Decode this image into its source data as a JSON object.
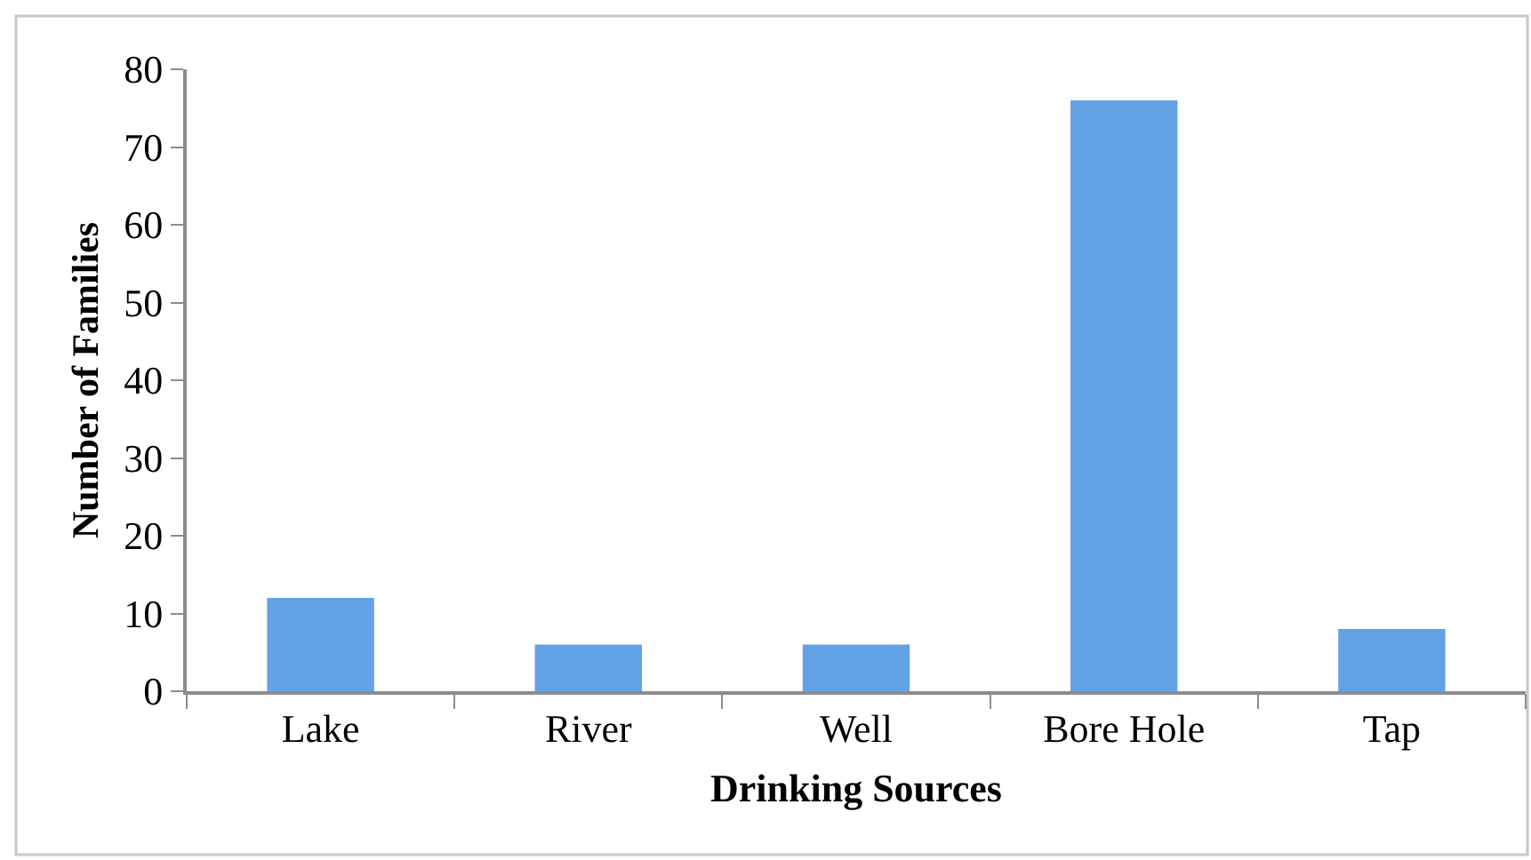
{
  "chart_data": {
    "type": "bar",
    "xlabel": "Drinking Sources",
    "ylabel": "Number of Families",
    "categories": [
      "Lake",
      "River",
      "Well",
      "Bore Hole",
      "Tap"
    ],
    "values": [
      12,
      6,
      6,
      76,
      8
    ],
    "color": "#64a2e6",
    "ylim": [
      0,
      80
    ],
    "yticks": [
      0,
      10,
      20,
      30,
      40,
      50,
      60,
      70,
      80
    ]
  }
}
